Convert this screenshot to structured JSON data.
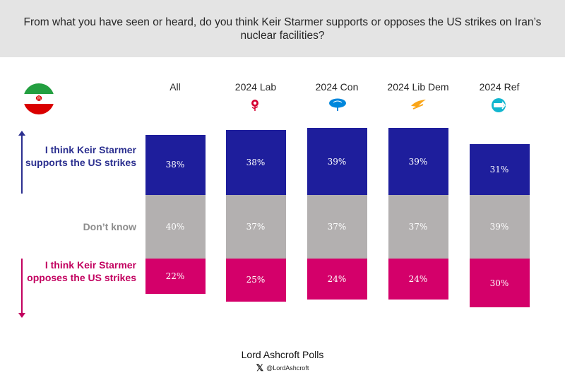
{
  "header": {
    "question": "From what you have seen or heard, do you think Keir Starmer supports or opposes the US strikes on Iran’s nuclear facilities?"
  },
  "flag_icon": "iran-flag-icon",
  "row_labels": {
    "supports": "I think Keir Starmer supports the US strikes",
    "dont_know": "Don’t know",
    "opposes": "I think Keir Starmer opposes the US strikes"
  },
  "colors": {
    "supports": "#1e1e9c",
    "dont_know": "#b3b0b0",
    "opposes": "#d4006a"
  },
  "chart_data": {
    "type": "bar",
    "stacked": true,
    "categories": [
      "All",
      "2024 Lab",
      "2024 Con",
      "2024 Lib Dem",
      "2024 Ref"
    ],
    "category_icons": [
      "",
      "labour-rose-icon",
      "conservative-tree-icon",
      "libdem-bird-icon",
      "reform-icon"
    ],
    "series": [
      {
        "name": "I think Keir Starmer supports the US strikes",
        "values": [
          38,
          38,
          39,
          39,
          31
        ],
        "labels": [
          "38%",
          "38%",
          "39%",
          "39%",
          "31%"
        ]
      },
      {
        "name": "Don’t know",
        "values": [
          40,
          37,
          37,
          37,
          39
        ],
        "labels": [
          "40%",
          "37%",
          "37%",
          "37%",
          "39%"
        ]
      },
      {
        "name": "I think Keir Starmer opposes the US strikes",
        "values": [
          22,
          25,
          24,
          24,
          30
        ],
        "labels": [
          "22%",
          "25%",
          "24%",
          "24%",
          "30%"
        ]
      }
    ]
  },
  "footer": {
    "title": "Lord Ashcroft Polls",
    "x_glyph": "𝕏",
    "handle": "@LordAshcroft"
  }
}
